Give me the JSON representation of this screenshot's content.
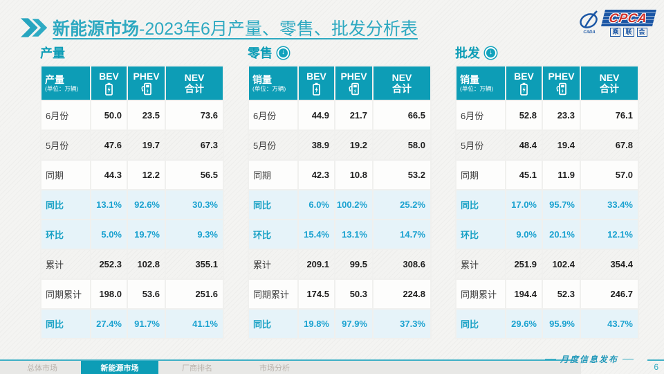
{
  "title": {
    "prefix": "新能源市场",
    "suffix": "-2023年6月产量、零售、批发分析表"
  },
  "logo": {
    "cpca": "CPCA",
    "sub_chars": [
      "乘",
      "联",
      "会"
    ],
    "cada": "CADA"
  },
  "icons": {
    "down_arrow": "↓"
  },
  "watermark": {
    "line1": "CPCA",
    "line2": "乘联会"
  },
  "columns": {
    "bev": "BEV",
    "phev": "PHEV",
    "nev_line1": "NEV",
    "nev_line2": "合计"
  },
  "tables": [
    {
      "section_title": "产量",
      "has_arrow": false,
      "row_header": "产量",
      "unit": "(单位：万辆)",
      "rows": [
        {
          "label": "6月份",
          "kind": "value",
          "values": [
            "50.0",
            "23.5",
            "73.6"
          ]
        },
        {
          "label": "5月份",
          "kind": "value",
          "values": [
            "47.6",
            "19.7",
            "67.3"
          ]
        },
        {
          "label": "同期",
          "kind": "value",
          "values": [
            "44.3",
            "12.2",
            "56.5"
          ]
        },
        {
          "label": "同比",
          "kind": "percent",
          "values": [
            "13.1%",
            "92.6%",
            "30.3%"
          ]
        },
        {
          "label": "环比",
          "kind": "percent",
          "values": [
            "5.0%",
            "19.7%",
            "9.3%"
          ]
        },
        {
          "label": "累计",
          "kind": "value",
          "values": [
            "252.3",
            "102.8",
            "355.1"
          ]
        },
        {
          "label": "同期累计",
          "kind": "value",
          "values": [
            "198.0",
            "53.6",
            "251.6"
          ]
        },
        {
          "label": "同比",
          "kind": "percent",
          "values": [
            "27.4%",
            "91.7%",
            "41.1%"
          ]
        }
      ]
    },
    {
      "section_title": "零售",
      "has_arrow": true,
      "row_header": "销量",
      "unit": "(单位：万辆)",
      "rows": [
        {
          "label": "6月份",
          "kind": "value",
          "values": [
            "44.9",
            "21.7",
            "66.5"
          ]
        },
        {
          "label": "5月份",
          "kind": "value",
          "values": [
            "38.9",
            "19.2",
            "58.0"
          ]
        },
        {
          "label": "同期",
          "kind": "value",
          "values": [
            "42.3",
            "10.8",
            "53.2"
          ]
        },
        {
          "label": "同比",
          "kind": "percent",
          "values": [
            "6.0%",
            "100.2%",
            "25.2%"
          ]
        },
        {
          "label": "环比",
          "kind": "percent",
          "values": [
            "15.4%",
            "13.1%",
            "14.7%"
          ]
        },
        {
          "label": "累计",
          "kind": "value",
          "values": [
            "209.1",
            "99.5",
            "308.6"
          ]
        },
        {
          "label": "同期累计",
          "kind": "value",
          "values": [
            "174.5",
            "50.3",
            "224.8"
          ]
        },
        {
          "label": "同比",
          "kind": "percent",
          "values": [
            "19.8%",
            "97.9%",
            "37.3%"
          ]
        }
      ]
    },
    {
      "section_title": "批发",
      "has_arrow": true,
      "row_header": "销量",
      "unit": "(单位：万辆)",
      "rows": [
        {
          "label": "6月份",
          "kind": "value",
          "values": [
            "52.8",
            "23.3",
            "76.1"
          ]
        },
        {
          "label": "5月份",
          "kind": "value",
          "values": [
            "48.4",
            "19.4",
            "67.8"
          ]
        },
        {
          "label": "同期",
          "kind": "value",
          "values": [
            "45.1",
            "11.9",
            "57.0"
          ]
        },
        {
          "label": "同比",
          "kind": "percent",
          "values": [
            "17.0%",
            "95.7%",
            "33.4%"
          ]
        },
        {
          "label": "环比",
          "kind": "percent",
          "values": [
            "9.0%",
            "20.1%",
            "12.1%"
          ]
        },
        {
          "label": "累计",
          "kind": "value",
          "values": [
            "251.9",
            "102.4",
            "354.4"
          ]
        },
        {
          "label": "同期累计",
          "kind": "value",
          "values": [
            "194.4",
            "52.3",
            "246.7"
          ]
        },
        {
          "label": "同比",
          "kind": "percent",
          "values": [
            "29.6%",
            "95.9%",
            "43.7%"
          ]
        }
      ]
    }
  ],
  "footer": {
    "tabs": [
      "总体市场",
      "新能源市场",
      "厂商排名",
      "市场分析"
    ],
    "active_index": 1,
    "publication": "月度信息发布",
    "page_number": "6"
  }
}
